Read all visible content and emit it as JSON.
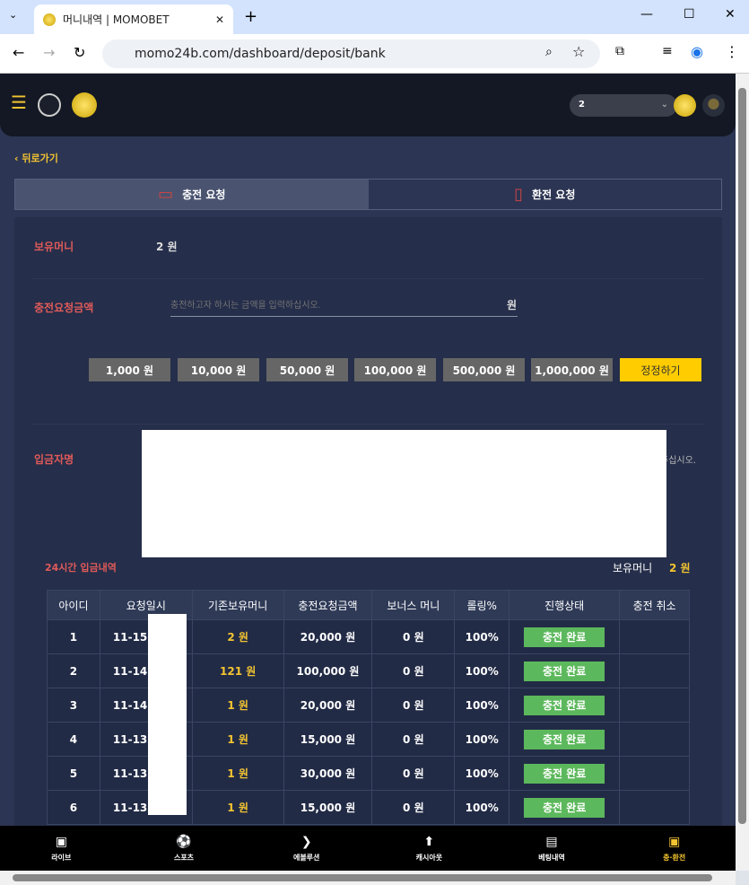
{
  "browser": {
    "tab_title": "머니내역 | MOMOBET",
    "url": "momo24b.com/dashboard/deposit/bank"
  },
  "header": {
    "balance_select": "2"
  },
  "back_label": "뒤로가기",
  "tabs": [
    {
      "label": "충전 요청",
      "active": true
    },
    {
      "label": "환전 요청",
      "active": false
    }
  ],
  "form": {
    "balance_label": "보유머니",
    "balance_value": "2 원",
    "amount_label": "충전요청금액",
    "amount_placeholder": "충전하고자 하시는 금액을 입력하십시오.",
    "amount_unit": "원",
    "quick_amounts": [
      "1,000 원",
      "10,000 원",
      "50,000 원",
      "100,000 원",
      "500,000 원",
      "1,000,000 원"
    ],
    "reset_label": "정정하기",
    "depositor_label": "입금자명",
    "depositor_hint_tail": "주십시오."
  },
  "history": {
    "title": "24시간 입금내역",
    "balance_label": "보유머니",
    "balance_value": "2 원",
    "columns": [
      "아이디",
      "요청일시",
      "기존보유머니",
      "충전요청금액",
      "보너스 머니",
      "롤링%",
      "진행상태",
      "충전 취소"
    ],
    "rows": [
      [
        "1",
        "11-15",
        "2 원",
        "20,000 원",
        "0 원",
        "100%",
        "충전 완료",
        ""
      ],
      [
        "2",
        "11-14",
        "121 원",
        "100,000 원",
        "0 원",
        "100%",
        "충전 완료",
        ""
      ],
      [
        "3",
        "11-14",
        "1 원",
        "20,000 원",
        "0 원",
        "100%",
        "충전 완료",
        ""
      ],
      [
        "4",
        "11-13",
        "1 원",
        "15,000 원",
        "0 원",
        "100%",
        "충전 완료",
        ""
      ],
      [
        "5",
        "11-13",
        "1 원",
        "30,000 원",
        "0 원",
        "100%",
        "충전 완료",
        ""
      ],
      [
        "6",
        "11-13",
        "1 원",
        "15,000 원",
        "0 원",
        "100%",
        "충전 완료",
        ""
      ]
    ]
  },
  "bottom_nav": [
    {
      "label": "라이브",
      "icon": "live-icon"
    },
    {
      "label": "스포츠",
      "icon": "soccer-ball-icon"
    },
    {
      "label": "에볼루션",
      "icon": "evolution-icon"
    },
    {
      "label": "캐시아웃",
      "icon": "cashout-icon"
    },
    {
      "label": "베팅내역",
      "icon": "document-icon"
    },
    {
      "label": "충·환전",
      "icon": "wallet-icon",
      "active": true
    }
  ],
  "colors": {
    "accent": "#f3c431",
    "label": "#e05a5a",
    "success": "#5cb85c"
  }
}
